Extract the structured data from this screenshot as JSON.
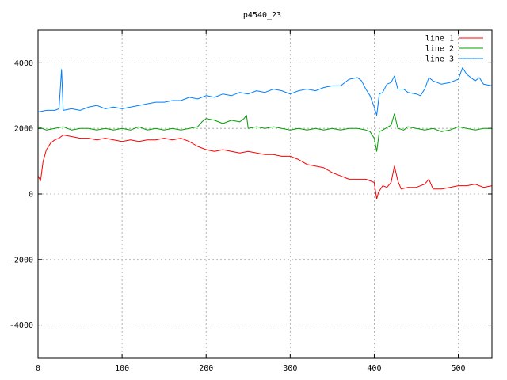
{
  "chart_data": {
    "type": "line",
    "title": "p4540_23",
    "xlabel": "",
    "ylabel": "",
    "xlim": [
      0,
      540
    ],
    "ylim": [
      -5000,
      5000
    ],
    "xticks": [
      0,
      100,
      200,
      300,
      400,
      500
    ],
    "yticks": [
      -4000,
      -2000,
      0,
      2000,
      4000
    ],
    "grid": true,
    "legend_position": "top-right",
    "series": [
      {
        "name": "line 1",
        "color": "#ff0000",
        "points": [
          [
            0,
            550
          ],
          [
            3,
            400
          ],
          [
            6,
            1000
          ],
          [
            10,
            1350
          ],
          [
            15,
            1550
          ],
          [
            20,
            1650
          ],
          [
            25,
            1700
          ],
          [
            30,
            1800
          ],
          [
            40,
            1750
          ],
          [
            50,
            1700
          ],
          [
            60,
            1700
          ],
          [
            70,
            1650
          ],
          [
            80,
            1700
          ],
          [
            90,
            1650
          ],
          [
            100,
            1600
          ],
          [
            110,
            1650
          ],
          [
            120,
            1600
          ],
          [
            130,
            1650
          ],
          [
            140,
            1650
          ],
          [
            150,
            1700
          ],
          [
            160,
            1650
          ],
          [
            170,
            1700
          ],
          [
            180,
            1600
          ],
          [
            190,
            1450
          ],
          [
            200,
            1350
          ],
          [
            210,
            1300
          ],
          [
            220,
            1350
          ],
          [
            230,
            1300
          ],
          [
            240,
            1250
          ],
          [
            250,
            1300
          ],
          [
            260,
            1250
          ],
          [
            270,
            1200
          ],
          [
            280,
            1200
          ],
          [
            290,
            1150
          ],
          [
            300,
            1150
          ],
          [
            310,
            1050
          ],
          [
            320,
            900
          ],
          [
            330,
            850
          ],
          [
            340,
            800
          ],
          [
            350,
            650
          ],
          [
            360,
            550
          ],
          [
            370,
            450
          ],
          [
            380,
            450
          ],
          [
            390,
            450
          ],
          [
            395,
            400
          ],
          [
            400,
            350
          ],
          [
            403,
            -150
          ],
          [
            405,
            50
          ],
          [
            410,
            250
          ],
          [
            415,
            200
          ],
          [
            420,
            350
          ],
          [
            424,
            850
          ],
          [
            428,
            400
          ],
          [
            432,
            150
          ],
          [
            440,
            200
          ],
          [
            450,
            200
          ],
          [
            460,
            300
          ],
          [
            465,
            450
          ],
          [
            470,
            150
          ],
          [
            480,
            150
          ],
          [
            490,
            200
          ],
          [
            500,
            250
          ],
          [
            510,
            250
          ],
          [
            520,
            300
          ],
          [
            530,
            200
          ],
          [
            540,
            250
          ]
        ]
      },
      {
        "name": "line 2",
        "color": "#00a000",
        "points": [
          [
            0,
            2050
          ],
          [
            10,
            1950
          ],
          [
            20,
            2000
          ],
          [
            30,
            2050
          ],
          [
            40,
            1950
          ],
          [
            50,
            2000
          ],
          [
            60,
            2000
          ],
          [
            70,
            1950
          ],
          [
            80,
            2000
          ],
          [
            90,
            1950
          ],
          [
            100,
            2000
          ],
          [
            110,
            1950
          ],
          [
            120,
            2050
          ],
          [
            130,
            1950
          ],
          [
            140,
            2000
          ],
          [
            150,
            1950
          ],
          [
            160,
            2000
          ],
          [
            170,
            1950
          ],
          [
            180,
            2000
          ],
          [
            190,
            2050
          ],
          [
            195,
            2200
          ],
          [
            200,
            2300
          ],
          [
            210,
            2250
          ],
          [
            220,
            2150
          ],
          [
            230,
            2250
          ],
          [
            240,
            2200
          ],
          [
            245,
            2300
          ],
          [
            248,
            2400
          ],
          [
            250,
            2000
          ],
          [
            260,
            2050
          ],
          [
            270,
            2000
          ],
          [
            280,
            2050
          ],
          [
            290,
            2000
          ],
          [
            300,
            1950
          ],
          [
            310,
            2000
          ],
          [
            320,
            1950
          ],
          [
            330,
            2000
          ],
          [
            340,
            1950
          ],
          [
            350,
            2000
          ],
          [
            360,
            1950
          ],
          [
            370,
            2000
          ],
          [
            380,
            2000
          ],
          [
            390,
            1950
          ],
          [
            395,
            1900
          ],
          [
            400,
            1700
          ],
          [
            403,
            1300
          ],
          [
            406,
            1900
          ],
          [
            410,
            1950
          ],
          [
            420,
            2100
          ],
          [
            424,
            2450
          ],
          [
            428,
            2000
          ],
          [
            435,
            1950
          ],
          [
            440,
            2050
          ],
          [
            450,
            2000
          ],
          [
            460,
            1950
          ],
          [
            470,
            2000
          ],
          [
            480,
            1900
          ],
          [
            490,
            1950
          ],
          [
            500,
            2050
          ],
          [
            510,
            2000
          ],
          [
            520,
            1950
          ],
          [
            530,
            2000
          ],
          [
            540,
            2000
          ]
        ]
      },
      {
        "name": "line 3",
        "color": "#0080ff",
        "points": [
          [
            0,
            2500
          ],
          [
            10,
            2550
          ],
          [
            20,
            2550
          ],
          [
            25,
            2600
          ],
          [
            28,
            3800
          ],
          [
            30,
            2550
          ],
          [
            40,
            2600
          ],
          [
            50,
            2550
          ],
          [
            60,
            2650
          ],
          [
            70,
            2700
          ],
          [
            80,
            2600
          ],
          [
            90,
            2650
          ],
          [
            100,
            2600
          ],
          [
            110,
            2650
          ],
          [
            120,
            2700
          ],
          [
            130,
            2750
          ],
          [
            140,
            2800
          ],
          [
            150,
            2800
          ],
          [
            160,
            2850
          ],
          [
            170,
            2850
          ],
          [
            180,
            2950
          ],
          [
            190,
            2900
          ],
          [
            200,
            3000
          ],
          [
            210,
            2950
          ],
          [
            220,
            3050
          ],
          [
            230,
            3000
          ],
          [
            240,
            3100
          ],
          [
            250,
            3050
          ],
          [
            260,
            3150
          ],
          [
            270,
            3100
          ],
          [
            280,
            3200
          ],
          [
            290,
            3150
          ],
          [
            300,
            3050
          ],
          [
            310,
            3150
          ],
          [
            320,
            3200
          ],
          [
            330,
            3150
          ],
          [
            340,
            3250
          ],
          [
            350,
            3300
          ],
          [
            360,
            3300
          ],
          [
            370,
            3500
          ],
          [
            380,
            3550
          ],
          [
            385,
            3450
          ],
          [
            390,
            3200
          ],
          [
            395,
            3000
          ],
          [
            400,
            2650
          ],
          [
            403,
            2400
          ],
          [
            406,
            3050
          ],
          [
            410,
            3100
          ],
          [
            415,
            3350
          ],
          [
            420,
            3400
          ],
          [
            424,
            3600
          ],
          [
            428,
            3200
          ],
          [
            435,
            3200
          ],
          [
            440,
            3100
          ],
          [
            450,
            3050
          ],
          [
            455,
            3000
          ],
          [
            460,
            3200
          ],
          [
            465,
            3550
          ],
          [
            470,
            3450
          ],
          [
            480,
            3350
          ],
          [
            490,
            3400
          ],
          [
            500,
            3500
          ],
          [
            505,
            3850
          ],
          [
            510,
            3650
          ],
          [
            520,
            3450
          ],
          [
            525,
            3550
          ],
          [
            530,
            3350
          ],
          [
            540,
            3300
          ]
        ]
      }
    ]
  }
}
